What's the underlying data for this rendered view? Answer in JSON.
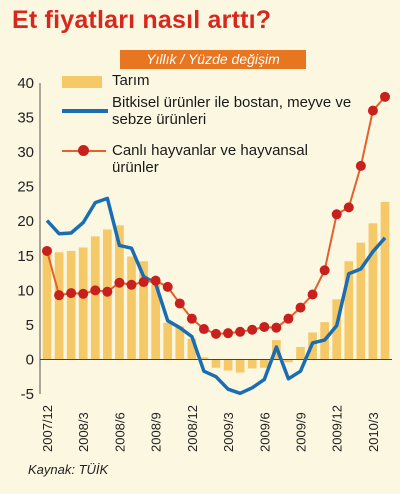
{
  "header": {
    "title": "Et fiyatları nasıl arttı?",
    "subtitle": "Yıllık / Yüzde değişim"
  },
  "source": "Kaynak: TÜİK",
  "colors": {
    "bar": "#f5c868",
    "plant_line": "#1a6db3",
    "animal_line": "#e2622a",
    "animal_marker": "#c8201c",
    "title": "#d8281d",
    "subtitle_bg": "#e8751f"
  },
  "chart_data": {
    "type": "bar",
    "title": "Et fiyatları nasıl arttı?",
    "subtitle": "Yıllık / Yüzde değişim",
    "ylim": [
      -5,
      40
    ],
    "yticks": [
      -5,
      0,
      5,
      10,
      15,
      20,
      25,
      30,
      35,
      40
    ],
    "grid": false,
    "legend_position": "top-left",
    "x_tick_labels": [
      "2007/12",
      "2008/3",
      "2008/6",
      "2008/9",
      "2008/12",
      "2009/3",
      "2009/6",
      "2009/9",
      "2009/12",
      "2010/3"
    ],
    "x_tick_indices": [
      0,
      3,
      6,
      9,
      12,
      15,
      18,
      21,
      24,
      27
    ],
    "categories": [
      "2007/12",
      "2008/1",
      "2008/2",
      "2008/3",
      "2008/4",
      "2008/5",
      "2008/6",
      "2008/7",
      "2008/8",
      "2008/9",
      "2008/10",
      "2008/11",
      "2008/12",
      "2009/1",
      "2009/2",
      "2009/3",
      "2009/4",
      "2009/5",
      "2009/6",
      "2009/7",
      "2009/8",
      "2009/9",
      "2009/10",
      "2009/11",
      "2009/12",
      "2010/1",
      "2010/2",
      "2010/3",
      "2010/4"
    ],
    "series": [
      {
        "name": "Tarım",
        "kind": "bar",
        "values": [
          15.5,
          15.5,
          15.7,
          16.2,
          17.8,
          18.8,
          19.4,
          14.9,
          14.2,
          10.8,
          5.3,
          4.8,
          3.0,
          0.3,
          -1.2,
          -1.6,
          -1.9,
          -1.3,
          -1.2,
          2.8,
          -0.4,
          1.8,
          3.9,
          5.4,
          8.7,
          14.2,
          16.9,
          19.7,
          22.8
        ]
      },
      {
        "name": "Bitkisel ürünler ile bostan, meyve ve sebze ürünleri",
        "kind": "line",
        "values": [
          20.1,
          18.2,
          18.3,
          19.8,
          22.7,
          23.3,
          16.5,
          16.1,
          12.0,
          11.0,
          5.6,
          4.6,
          3.3,
          -1.7,
          -2.5,
          -4.3,
          -4.9,
          -4.1,
          -2.9,
          1.8,
          -2.8,
          -1.7,
          2.4,
          2.8,
          4.9,
          12.4,
          13.1,
          15.6,
          17.6
        ]
      },
      {
        "name": "Canlı hayvanlar ve hayvansal ürünler",
        "kind": "line_marker",
        "values": [
          15.7,
          9.3,
          9.6,
          9.5,
          10.0,
          9.8,
          11.1,
          10.8,
          11.2,
          11.4,
          10.5,
          8.1,
          5.9,
          4.4,
          3.7,
          3.8,
          4.0,
          4.3,
          4.7,
          4.6,
          5.9,
          7.5,
          9.4,
          12.9,
          21.0,
          22.0,
          28.0,
          36.0,
          38.0
        ]
      }
    ]
  }
}
